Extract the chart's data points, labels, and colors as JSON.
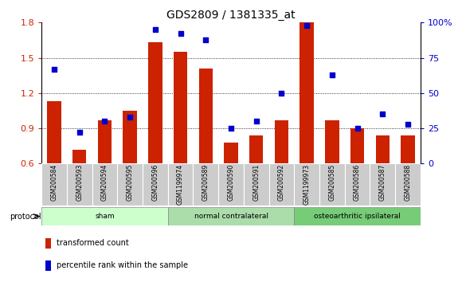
{
  "title": "GDS2809 / 1381335_at",
  "samples": [
    "GSM200584",
    "GSM200593",
    "GSM200594",
    "GSM200595",
    "GSM200596",
    "GSM1199974",
    "GSM200589",
    "GSM200590",
    "GSM200591",
    "GSM200592",
    "GSM1199973",
    "GSM200585",
    "GSM200586",
    "GSM200587",
    "GSM200588"
  ],
  "bar_values": [
    1.13,
    0.72,
    0.97,
    1.05,
    1.63,
    1.55,
    1.41,
    0.78,
    0.84,
    0.97,
    1.8,
    0.97,
    0.9,
    0.84,
    0.84
  ],
  "scatter_values": [
    67,
    22,
    30,
    33,
    95,
    92,
    88,
    25,
    30,
    50,
    98,
    63,
    25,
    35,
    28
  ],
  "ylim_left": [
    0.6,
    1.8
  ],
  "ylim_right": [
    0,
    100
  ],
  "yticks_left": [
    0.6,
    0.9,
    1.2,
    1.5,
    1.8
  ],
  "yticks_right": [
    0,
    25,
    50,
    75,
    100
  ],
  "ytick_labels_right": [
    "0",
    "25",
    "50",
    "75",
    "100%"
  ],
  "bar_color": "#cc2200",
  "scatter_color": "#0000cc",
  "groups": [
    {
      "label": "sham",
      "start": 0,
      "end": 5
    },
    {
      "label": "normal contralateral",
      "start": 5,
      "end": 10
    },
    {
      "label": "osteoarthritic ipsilateral",
      "start": 10,
      "end": 15
    }
  ],
  "group_colors": [
    "#ccffcc",
    "#aaddaa",
    "#77cc77"
  ],
  "protocol_label": "protocol",
  "legend_items": [
    {
      "label": "transformed count",
      "color": "#cc2200"
    },
    {
      "label": "percentile rank within the sample",
      "color": "#0000cc"
    }
  ],
  "background_color": "#ffffff",
  "sample_box_color": "#cccccc"
}
